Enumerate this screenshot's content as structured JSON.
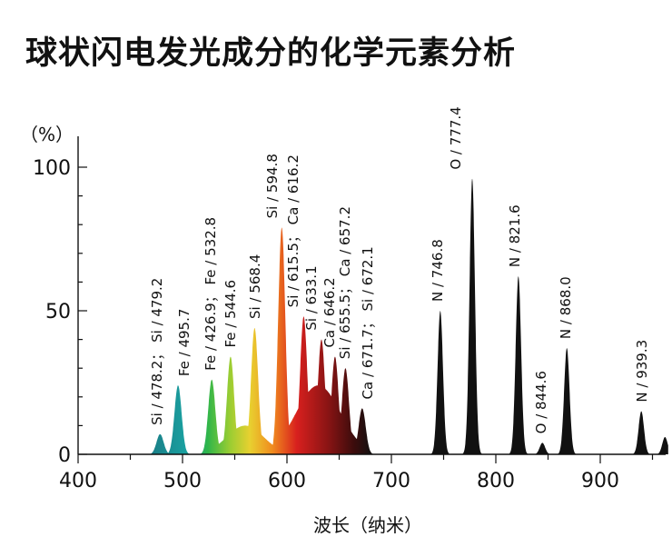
{
  "title": "球状闪电发光成分的化学元素分析",
  "chart_data": {
    "type": "area",
    "title": "球状闪电发光成分的化学元素分析",
    "xlabel": "波长（纳米）",
    "ylabel": "（%）",
    "xlim": [
      400,
      965
    ],
    "ylim": [
      0,
      110
    ],
    "xticks": [
      400,
      500,
      600,
      700,
      800,
      900
    ],
    "yticks": [
      0,
      50,
      100
    ],
    "grid": false,
    "spectrum_color": "gradient: teal (480nm) → green → yellow → orange → red → dark red/black (680nm); black above 700nm",
    "peaks": [
      {
        "x": 478.5,
        "y": 7,
        "label": "Si / 478.2； Si / 479.2"
      },
      {
        "x": 495.7,
        "y": 24,
        "label": "Fe / 495.7"
      },
      {
        "x": 528,
        "y": 26,
        "label": "Fe / 426.9； Fe / 532.8"
      },
      {
        "x": 546,
        "y": 34,
        "label": "Fe / 544.6"
      },
      {
        "x": 569,
        "y": 44,
        "label": "Si / 568.4"
      },
      {
        "x": 595,
        "y": 79,
        "label": "Si / 594.8"
      },
      {
        "x": 616,
        "y": 48,
        "label": "Si / 615.5； Ca / 616.2"
      },
      {
        "x": 633,
        "y": 40,
        "label": "Si / 633.1"
      },
      {
        "x": 646,
        "y": 34,
        "label": "Ca / 646.2"
      },
      {
        "x": 656,
        "y": 30,
        "label": "Si / 655.5； Ca / 657.2"
      },
      {
        "x": 672,
        "y": 16,
        "label": "Ca / 671.7； Si / 672.1"
      },
      {
        "x": 746.8,
        "y": 50,
        "label": "N / 746.8"
      },
      {
        "x": 777.4,
        "y": 96,
        "label": "O / 777.4"
      },
      {
        "x": 821.6,
        "y": 62,
        "label": "N / 821.6"
      },
      {
        "x": 844.6,
        "y": 4,
        "label": "O / 844.6"
      },
      {
        "x": 868.0,
        "y": 37,
        "label": "N / 868.0"
      },
      {
        "x": 939.3,
        "y": 15,
        "label": "N / 939.3"
      },
      {
        "x": 962,
        "y": 6,
        "label": ""
      }
    ]
  }
}
